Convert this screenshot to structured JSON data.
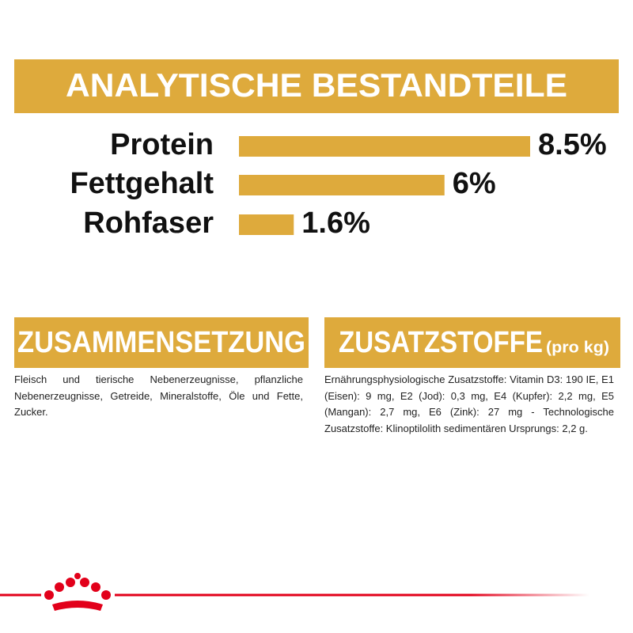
{
  "chart_data": {
    "type": "bar",
    "orientation": "horizontal",
    "title": "ANALYTISCHE BESTANDTEILE",
    "categories": [
      "Protein",
      "Fettgehalt",
      "Rohfaser"
    ],
    "values": [
      8.5,
      6,
      1.6
    ],
    "value_labels": [
      "8.5%",
      "6%",
      "1.6%"
    ],
    "color": "#deaa3c"
  },
  "sections": [
    {
      "title": "ZUSAMMENSETZUNG",
      "text": "Fleisch und tierische Nebenerzeugnisse, pflanzliche Nebenerzeugnisse, Getreide, Mineralstoffe, Öle und Fette, Zucker."
    },
    {
      "title": "ZUSATZSTOFFE",
      "subtitle": "(pro kg)",
      "text": "Ernährungsphysiologische Zusatzstoffe: Vitamin D3: 190 IE, E1 (Eisen): 9 mg, E2 (Jod): 0,3 mg, E4 (Kupfer): 2,2 mg, E5 (Mangan): 2,7 mg, E6 (Zink): 27 mg - Technologische Zusatzstoffe: Klinoptilolith sedimentären Ursprungs: 2,2 g."
    }
  ]
}
